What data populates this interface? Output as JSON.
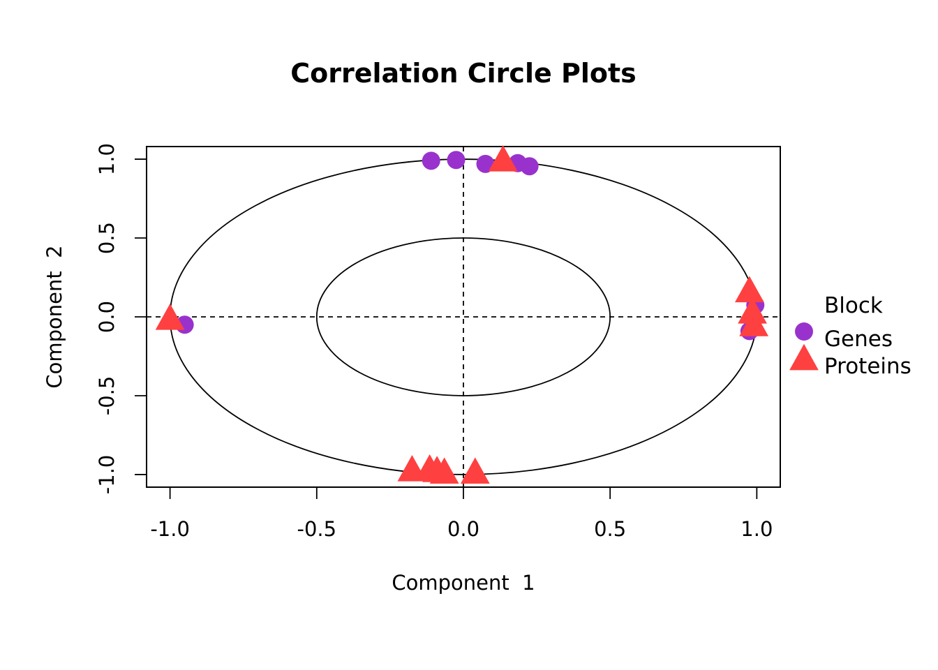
{
  "chart_data": {
    "type": "scatter",
    "title": "Correlation Circle Plots",
    "xlabel": "Component  1",
    "ylabel": "Component  2",
    "xlim": [
      -1.08,
      1.08
    ],
    "ylim": [
      -1.08,
      1.08
    ],
    "x_ticks": [
      -1.0,
      -0.5,
      0.0,
      0.5,
      1.0
    ],
    "x_tick_labels": [
      "-1.0",
      "-0.5",
      "0.0",
      "0.5",
      "1.0"
    ],
    "y_ticks": [
      -1.0,
      -0.5,
      0.0,
      0.5,
      1.0
    ],
    "y_tick_labels": [
      "-1.0",
      "-0.5",
      "0.0",
      "0.5",
      "1.0"
    ],
    "circles": [
      1.0,
      0.5
    ],
    "reference_lines": [
      0.0
    ],
    "grid": false,
    "legend": {
      "title": "Block",
      "placement": "right"
    },
    "series": [
      {
        "name": "Genes",
        "marker": "circle",
        "color": "#9932CC",
        "points": [
          [
            -0.11,
            0.99
          ],
          [
            -0.025,
            0.995
          ],
          [
            0.075,
            0.97
          ],
          [
            0.185,
            0.975
          ],
          [
            0.225,
            0.955
          ],
          [
            -0.95,
            -0.05
          ],
          [
            0.995,
            0.075
          ],
          [
            0.975,
            -0.09
          ]
        ]
      },
      {
        "name": "Proteins",
        "marker": "triangle",
        "color": "#FF4040",
        "points": [
          [
            0.135,
            0.995
          ],
          [
            -1.0,
            -0.01
          ],
          [
            0.975,
            0.165
          ],
          [
            0.985,
            0.03
          ],
          [
            0.99,
            -0.05
          ],
          [
            -0.175,
            -0.97
          ],
          [
            -0.115,
            -0.965
          ],
          [
            -0.09,
            -0.975
          ],
          [
            -0.065,
            -0.985
          ],
          [
            0.04,
            -0.985
          ]
        ]
      }
    ]
  }
}
